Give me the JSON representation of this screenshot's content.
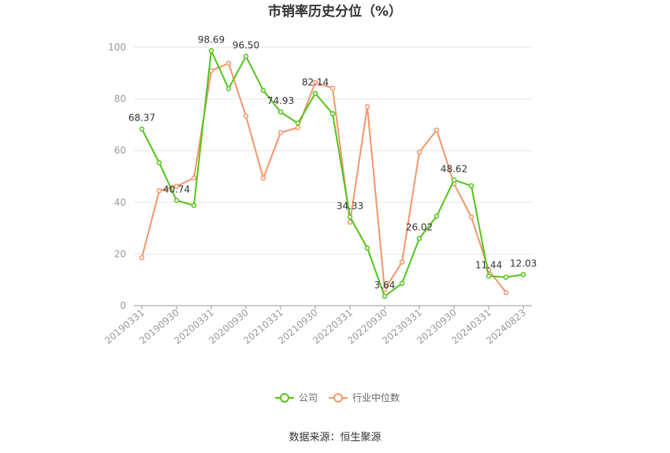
{
  "chart_data": {
    "type": "line",
    "title": "市销率历史分位（%）",
    "xlabel": "",
    "ylabel": "",
    "ylim": [
      0,
      100
    ],
    "yticks": [
      0,
      20,
      40,
      60,
      80,
      100
    ],
    "grid": true,
    "legend_position": "bottom",
    "x": [
      "20190331",
      "20190630",
      "20190930",
      "20191231",
      "20200331",
      "20200630",
      "20200930",
      "20201231",
      "20210331",
      "20210630",
      "20210930",
      "20211231",
      "20220331",
      "20220630",
      "20220930",
      "20221231",
      "20230331",
      "20230630",
      "20230930",
      "20231231",
      "20240331",
      "20240630",
      "20240823"
    ],
    "x_tick_labels": [
      "20190331",
      "20190930",
      "20200331",
      "20200930",
      "20210331",
      "20210930",
      "20220331",
      "20220930",
      "20230331",
      "20230930",
      "20240331",
      "20240823"
    ],
    "series": [
      {
        "name": "公司",
        "color": "#52c41a",
        "values": [
          68.37,
          55.3,
          40.74,
          38.8,
          98.69,
          84.0,
          96.5,
          83.3,
          74.93,
          70.6,
          82.14,
          74.3,
          34.33,
          22.3,
          3.64,
          8.6,
          26.02,
          34.6,
          48.62,
          46.4,
          11.44,
          11.0,
          12.03
        ],
        "labels": {
          "0": "68.37",
          "2": "40.74",
          "4": "98.69",
          "6": "96.50",
          "8": "74.93",
          "10": "82.14",
          "12": "34.33",
          "14": "3.64",
          "16": "26.02",
          "18": "48.62",
          "20": "11.44",
          "22": "12.03"
        }
      },
      {
        "name": "行业中位数",
        "color": "#f4956a",
        "values": [
          18.6,
          44.5,
          46.2,
          49.4,
          90.9,
          93.8,
          73.4,
          49.3,
          67.0,
          68.9,
          86.4,
          84.2,
          32.3,
          77.0,
          6.2,
          16.9,
          59.4,
          68.0,
          47.2,
          34.3,
          13.8,
          5.1,
          null
        ]
      }
    ],
    "source": "数据来源：恒生聚源"
  }
}
